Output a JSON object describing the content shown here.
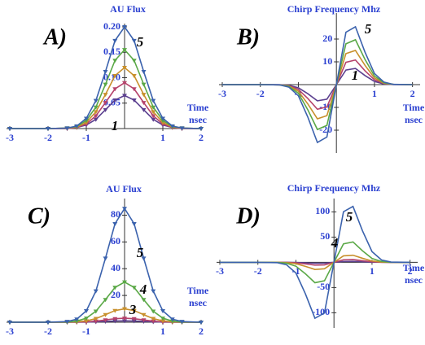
{
  "chart_data": [
    {
      "type": "line",
      "title": "AU Flux",
      "panel_label": "A)",
      "annotations": [
        "5",
        "1"
      ],
      "xlabel": [
        "Time",
        "nsec"
      ],
      "markers": true,
      "x": [
        -3,
        -2,
        -1.5,
        -1.25,
        -1,
        -0.75,
        -0.5,
        -0.25,
        0,
        0.25,
        0.5,
        0.75,
        1,
        1.25,
        1.5,
        2
      ],
      "xlim": [
        -3,
        2
      ],
      "xticks": [
        -3,
        -2,
        -1,
        1,
        2
      ],
      "ylim": [
        0,
        0.2
      ],
      "yticks": [
        0.05,
        {
          "value": 0.1,
          "label": "0.10"
        },
        0.15,
        {
          "value": 0.2,
          "label": "0.20"
        }
      ],
      "grid": false,
      "series": [
        {
          "color": "#5b3f8f",
          "values": [
            0,
            0,
            0,
            0.002,
            0.007,
            0.018,
            0.037,
            0.056,
            0.065,
            0.056,
            0.037,
            0.018,
            0.007,
            0.002,
            0,
            0
          ]
        },
        {
          "color": "#b5436b",
          "values": [
            0,
            0,
            0,
            0.002,
            0.009,
            0.025,
            0.051,
            0.078,
            0.09,
            0.078,
            0.051,
            0.025,
            0.009,
            0.002,
            0,
            0
          ]
        },
        {
          "color": "#c8902c",
          "values": [
            0,
            0,
            0.001,
            0.003,
            0.012,
            0.033,
            0.067,
            0.104,
            0.12,
            0.104,
            0.067,
            0.033,
            0.012,
            0.003,
            0.001,
            0
          ]
        },
        {
          "color": "#5aa846",
          "values": [
            0,
            0,
            0.001,
            0.004,
            0.016,
            0.042,
            0.087,
            0.134,
            0.155,
            0.134,
            0.087,
            0.042,
            0.016,
            0.004,
            0.001,
            0
          ]
        },
        {
          "color": "#3b62ad",
          "values": [
            0,
            0,
            0.001,
            0.005,
            0.02,
            0.055,
            0.112,
            0.173,
            0.2,
            0.173,
            0.112,
            0.055,
            0.02,
            0.005,
            0.001,
            0
          ]
        }
      ]
    },
    {
      "type": "line",
      "title": "Chirp Frequency Mhz",
      "panel_label": "B)",
      "annotations": [
        "5",
        "1"
      ],
      "xlabel": [
        "Time",
        "nsec"
      ],
      "markers": false,
      "x": [
        -3,
        -2,
        -1.5,
        -1.25,
        -1,
        -0.75,
        -0.5,
        -0.25,
        0,
        0.25,
        0.5,
        0.75,
        1,
        1.25,
        1.5,
        2
      ],
      "xlim": [
        -3,
        2.2
      ],
      "xticks": [
        -3,
        -2,
        -1,
        1,
        2
      ],
      "ylim": [
        -30,
        30
      ],
      "yticks": [
        -20,
        -10,
        10,
        20
      ],
      "grid": false,
      "series": [
        {
          "color": "#5b3f8f",
          "values": [
            0,
            0,
            0,
            -0.3,
            -1.4,
            -4,
            -7.1,
            -6.4,
            0,
            6.4,
            7.1,
            4,
            1.4,
            0.3,
            0,
            0
          ]
        },
        {
          "color": "#b5436b",
          "values": [
            0,
            0,
            -0.1,
            -0.5,
            -2.1,
            -6.1,
            -10.8,
            -9.8,
            0,
            9.8,
            10.8,
            6.1,
            2.1,
            0.5,
            0.1,
            0
          ]
        },
        {
          "color": "#c8902c",
          "values": [
            0,
            0,
            -0.1,
            -0.6,
            -2.9,
            -8.5,
            -15,
            -13.6,
            0,
            13.6,
            15,
            8.5,
            2.9,
            0.6,
            0.1,
            0
          ]
        },
        {
          "color": "#5aa846",
          "values": [
            0,
            0,
            -0.1,
            -0.8,
            -3.8,
            -11.1,
            -19.7,
            -17.9,
            0,
            17.9,
            19.7,
            11.1,
            3.8,
            0.8,
            0.1,
            0
          ]
        },
        {
          "color": "#3b62ad",
          "values": [
            0,
            0,
            -0.1,
            -1.1,
            -4.9,
            -14.3,
            -25.4,
            -23,
            0,
            23,
            25.4,
            14.3,
            4.9,
            1.1,
            0.1,
            0
          ]
        }
      ]
    },
    {
      "type": "line",
      "title": "AU Flux",
      "panel_label": "C)",
      "annotations": [
        "5",
        "4",
        "3"
      ],
      "xlabel": [
        "Time",
        "nsec"
      ],
      "markers": true,
      "x": [
        -3,
        -2,
        -1.5,
        -1.25,
        -1,
        -0.75,
        -0.5,
        -0.25,
        0,
        0.25,
        0.5,
        0.75,
        1,
        1.25,
        1.5,
        2
      ],
      "xlim": [
        -3,
        2
      ],
      "xticks": [
        -3,
        -2,
        -1,
        1,
        2
      ],
      "ylim": [
        0,
        90
      ],
      "yticks": [
        20,
        40,
        60,
        80
      ],
      "grid": false,
      "series": [
        {
          "color": "#5b3f8f",
          "values": [
            0,
            0,
            0,
            0,
            0.1,
            0.3,
            0.6,
            0.9,
            1,
            0.9,
            0.6,
            0.3,
            0.1,
            0,
            0,
            0
          ]
        },
        {
          "color": "#b5436b",
          "values": [
            0,
            0,
            0,
            0.1,
            0.3,
            0.8,
            1.7,
            2.6,
            3,
            2.6,
            1.7,
            0.8,
            0.3,
            0.1,
            0,
            0
          ]
        },
        {
          "color": "#c8902c",
          "values": [
            0,
            0,
            0.1,
            0.3,
            1,
            2.7,
            5.6,
            8.7,
            10,
            8.7,
            5.6,
            2.7,
            1,
            0.3,
            0.1,
            0
          ]
        },
        {
          "color": "#5aa846",
          "values": [
            0,
            0,
            0.2,
            0.8,
            3,
            8.2,
            16.9,
            26,
            30,
            26,
            16.9,
            8.2,
            3,
            0.8,
            0.2,
            0
          ]
        },
        {
          "color": "#3b62ad",
          "values": [
            0,
            0,
            0.5,
            2.3,
            8.5,
            23.3,
            47.8,
            73.6,
            85,
            73.6,
            47.8,
            23.3,
            8.5,
            2.3,
            0.5,
            0
          ]
        }
      ]
    },
    {
      "type": "line",
      "title": "Chirp Frequency Mhz",
      "panel_label": "D)",
      "annotations": [
        "5",
        "4"
      ],
      "xlabel": [
        "Time",
        "nsec"
      ],
      "markers": false,
      "x": [
        -3,
        -2,
        -1.5,
        -1.25,
        -1,
        -0.75,
        -0.5,
        -0.25,
        0,
        0.25,
        0.5,
        0.75,
        1,
        1.25,
        1.5,
        2
      ],
      "xlim": [
        -3,
        2.2
      ],
      "xticks": [
        -3,
        -2,
        -1,
        1,
        2
      ],
      "ylim": [
        -130,
        120
      ],
      "yticks": [
        -100,
        -50,
        50,
        100
      ],
      "grid": false,
      "series": [
        {
          "color": "#5b3f8f",
          "values": [
            0,
            0,
            0,
            -0.1,
            -0.4,
            -1.1,
            -1.9,
            -1.7,
            0,
            1.7,
            1.9,
            1.1,
            0.4,
            0.1,
            0,
            0
          ]
        },
        {
          "color": "#b5436b",
          "values": [
            0,
            0,
            0,
            -0.2,
            -1.1,
            -3.2,
            -5.6,
            -5.1,
            0,
            5.1,
            5.6,
            3.2,
            1.1,
            0.2,
            0,
            0
          ]
        },
        {
          "color": "#c8902c",
          "values": [
            0,
            0,
            -0.1,
            -0.6,
            -2.7,
            -8,
            -14.1,
            -12.8,
            0,
            12.8,
            14.1,
            8,
            2.7,
            0.6,
            0.1,
            0
          ]
        },
        {
          "color": "#5aa846",
          "values": [
            0,
            0,
            -0.2,
            -1.7,
            -7.7,
            -22.8,
            -40.4,
            -36.6,
            0,
            36.6,
            40.4,
            22.8,
            7.7,
            1.7,
            0.2,
            0
          ]
        },
        {
          "color": "#3b62ad",
          "values": [
            0,
            0,
            -0.6,
            -4.7,
            -21.2,
            -62.5,
            -110.9,
            -100.3,
            0,
            100.3,
            110.9,
            62.5,
            21.2,
            4.7,
            0.6,
            0
          ]
        }
      ]
    }
  ]
}
